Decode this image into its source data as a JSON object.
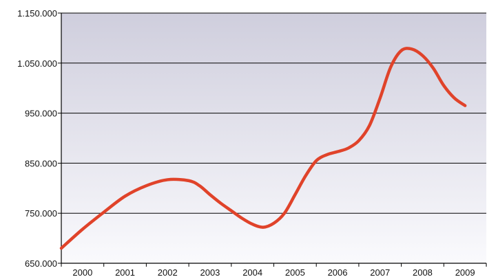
{
  "chart_data": {
    "type": "line",
    "title": "",
    "xlabel": "",
    "ylabel": "",
    "ylim": [
      650000,
      1150000
    ],
    "xlim": [
      2000,
      2010
    ],
    "grid": true,
    "legend": "none",
    "y_ticks": [
      {
        "value": 650000,
        "label": "650.000"
      },
      {
        "value": 750000,
        "label": "750.000"
      },
      {
        "value": 850000,
        "label": "850.000"
      },
      {
        "value": 950000,
        "label": "950.000"
      },
      {
        "value": 1050000,
        "label": "1.050.000"
      },
      {
        "value": 1150000,
        "label": "1.150.000"
      }
    ],
    "x_ticks": [
      "2000",
      "2001",
      "2002",
      "2003",
      "2004",
      "2005",
      "2006",
      "2007",
      "2008",
      "2009"
    ],
    "series": [
      {
        "x": [
          2000.0,
          2000.5,
          2001.0,
          2001.5,
          2002.0,
          2002.5,
          2003.0,
          2003.25,
          2003.5,
          2003.75,
          2004.0,
          2004.25,
          2004.5,
          2004.75,
          2005.0,
          2005.25,
          2005.5,
          2005.75,
          2006.0,
          2006.25,
          2006.5,
          2006.75,
          2007.0,
          2007.25,
          2007.5,
          2007.75,
          2008.0,
          2008.25,
          2008.5,
          2008.75,
          2009.0,
          2009.25,
          2009.5
        ],
        "y": [
          680000,
          718000,
          752000,
          784000,
          805000,
          817000,
          815000,
          805000,
          787000,
          770000,
          755000,
          740000,
          728000,
          722000,
          730000,
          750000,
          787000,
          825000,
          855000,
          867000,
          873000,
          880000,
          895000,
          925000,
          980000,
          1042000,
          1075000,
          1078000,
          1065000,
          1040000,
          1005000,
          980000,
          965000
        ]
      }
    ],
    "colors": {
      "line": "#e0432a",
      "plot_top": "#cfcedd",
      "plot_bottom": "#fafafd",
      "grid": "#000000",
      "axis": "#000000"
    }
  }
}
